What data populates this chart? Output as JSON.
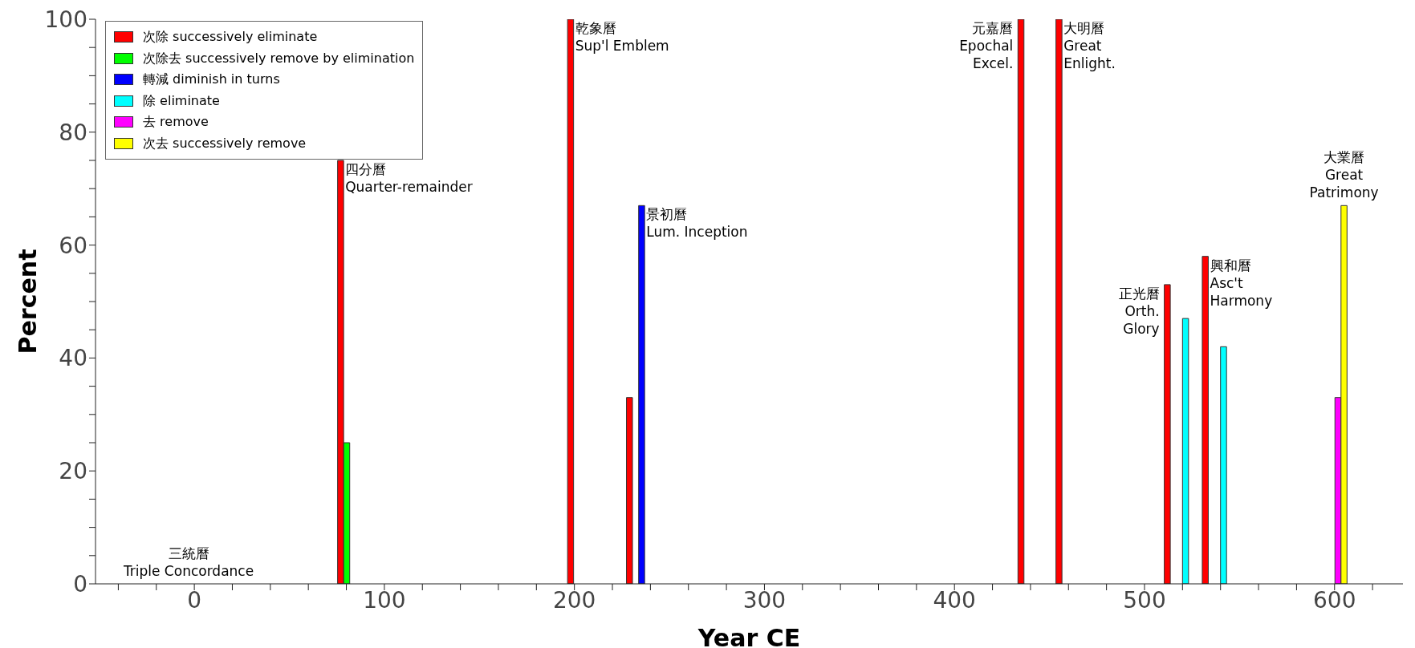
{
  "chart_data": {
    "type": "bar",
    "xlabel": "Year CE",
    "ylabel": "Percent",
    "series": [
      {
        "name": "次除 successively eliminate",
        "color": "#ff0000",
        "x": [
          -3,
          77,
          198,
          229,
          435,
          455,
          512,
          532,
          589
        ],
        "values": [
          0,
          75,
          100,
          33,
          100,
          100,
          53,
          58,
          0
        ]
      },
      {
        "name": "次除去 successively remove by elimination",
        "color": "#00ff00",
        "x": [
          0.2,
          80.2,
          201.2,
          232.2,
          438.2,
          458.2,
          515.2,
          535.2,
          592.2
        ],
        "values": [
          0,
          25,
          0,
          0,
          0,
          0,
          0,
          0,
          0
        ]
      },
      {
        "name": "轉減 diminish in turns",
        "color": "#0000ff",
        "x": [
          3.4,
          83.4,
          204.4,
          235.4,
          441.4,
          461.4,
          518.4,
          538.4,
          595.4
        ],
        "values": [
          0,
          0,
          0,
          67,
          0,
          0,
          0,
          0,
          0
        ]
      },
      {
        "name": "除 eliminate",
        "color": "#00ffff",
        "x": [
          6.6,
          86.6,
          207.6,
          238.6,
          444.6,
          464.6,
          521.6,
          541.6,
          598.6
        ],
        "values": [
          0,
          0,
          0,
          0,
          0,
          0,
          47,
          42,
          0
        ]
      },
      {
        "name": "去 remove",
        "color": "#ff00ff",
        "x": [
          9.8,
          89.8,
          210.8,
          241.8,
          447.8,
          467.8,
          524.8,
          544.8,
          601.8
        ],
        "values": [
          0,
          0,
          0,
          0,
          0,
          0,
          0,
          0,
          33
        ]
      },
      {
        "name": "次去 successively remove",
        "color": "#ffff00",
        "x": [
          13,
          93,
          214,
          245,
          451,
          471,
          528,
          548,
          605
        ],
        "values": [
          0,
          0,
          0,
          0,
          0,
          0,
          0,
          0,
          67
        ]
      }
    ],
    "xlim": [
      -52,
      636
    ],
    "xticks": [
      {
        "value": -40,
        "label": null
      },
      {
        "value": -20,
        "label": null
      },
      0,
      {
        "value": 20,
        "label": null
      },
      {
        "value": 40,
        "label": null
      },
      {
        "value": 60,
        "label": null
      },
      {
        "value": 80,
        "label": null
      },
      100,
      {
        "value": 120,
        "label": null
      },
      {
        "value": 140,
        "label": null
      },
      {
        "value": 160,
        "label": null
      },
      {
        "value": 180,
        "label": null
      },
      200,
      {
        "value": 220,
        "label": null
      },
      {
        "value": 240,
        "label": null
      },
      {
        "value": 260,
        "label": null
      },
      {
        "value": 280,
        "label": null
      },
      300,
      {
        "value": 320,
        "label": null
      },
      {
        "value": 340,
        "label": null
      },
      {
        "value": 360,
        "label": null
      },
      {
        "value": 380,
        "label": null
      },
      400,
      {
        "value": 420,
        "label": null
      },
      {
        "value": 440,
        "label": null
      },
      {
        "value": 460,
        "label": null
      },
      {
        "value": 480,
        "label": null
      },
      500,
      {
        "value": 520,
        "label": null
      },
      {
        "value": 540,
        "label": null
      },
      {
        "value": 560,
        "label": null
      },
      {
        "value": 580,
        "label": null
      },
      600,
      {
        "value": 620,
        "label": null
      }
    ],
    "ylim": [
      0,
      100
    ],
    "yticks": [
      0,
      {
        "value": 5,
        "label": null
      },
      {
        "value": 10,
        "label": null
      },
      {
        "value": 15,
        "label": null
      },
      20,
      {
        "value": 25,
        "label": null
      },
      {
        "value": 30,
        "label": null
      },
      {
        "value": 35,
        "label": null
      },
      40,
      {
        "value": 45,
        "label": null
      },
      {
        "value": 50,
        "label": null
      },
      {
        "value": 55,
        "label": null
      },
      60,
      {
        "value": 65,
        "label": null
      },
      {
        "value": 70,
        "label": null
      },
      {
        "value": 75,
        "label": null
      },
      80,
      {
        "value": 85,
        "label": null
      },
      {
        "value": 90,
        "label": null
      },
      {
        "value": 95,
        "label": null
      },
      100
    ],
    "legend": "top left",
    "grid": false,
    "annotations": [
      {
        "text": "三統曆\nTriple Concordance",
        "x": -3,
        "y": 0
      },
      {
        "text": "四分曆\nQuarter-remainder",
        "x": 77,
        "y": 75
      },
      {
        "text": "乾象曆\nSup'l Emblem",
        "x": 198,
        "y": 100
      },
      {
        "text": "景初曆\nLum. Inception",
        "x": 235.4,
        "y": 67
      },
      {
        "text": "元嘉曆\nEpochal\nExcel.",
        "x": 435,
        "y": 100
      },
      {
        "text": "大明曆\nGreat\nEnlight.",
        "x": 455,
        "y": 100
      },
      {
        "text": "正光曆\nOrth.\nGlory",
        "x": 512,
        "y": 53
      },
      {
        "text": "興和曆\nAsc't\nHarmony",
        "x": 532,
        "y": 58
      },
      {
        "text": "大業曆\nGreat\nPatrimony",
        "x": 605,
        "y": 67
      }
    ]
  }
}
